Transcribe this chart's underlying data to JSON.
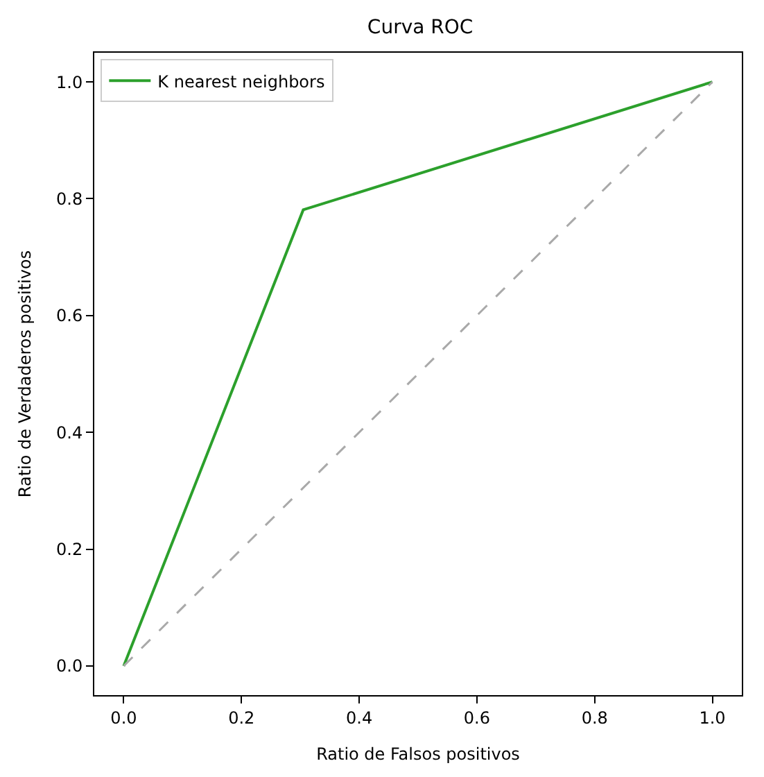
{
  "chart_data": {
    "type": "line",
    "title": "Curva ROC",
    "xlabel": "Ratio de Falsos positivos",
    "ylabel": "Ratio de Verdaderos positivos",
    "series": [
      {
        "name": "K nearest neighbors",
        "color": "#2ca02c",
        "x": [
          0,
          0.305,
          1
        ],
        "values": [
          0,
          0.781,
          1
        ],
        "line_style": "solid"
      },
      {
        "color": "#a9a9a9",
        "x": [
          0,
          1
        ],
        "values": [
          0,
          1
        ],
        "line_style": "dashed"
      }
    ],
    "xlim": [
      -0.05,
      1.05
    ],
    "ylim": [
      -0.05,
      1.05
    ],
    "xticks": [
      {
        "value": 0,
        "label": "0.0"
      },
      {
        "value": 0.2,
        "label": "0.2"
      },
      {
        "value": 0.4,
        "label": "0.4"
      },
      {
        "value": 0.6,
        "label": "0.6"
      },
      {
        "value": 0.8,
        "label": "0.8"
      },
      {
        "value": 1,
        "label": "1.0"
      }
    ],
    "yticks": [
      {
        "value": 0,
        "label": "0.0"
      },
      {
        "value": 0.2,
        "label": "0.2"
      },
      {
        "value": 0.4,
        "label": "0.4"
      },
      {
        "value": 0.6,
        "label": "0.6"
      },
      {
        "value": 0.8,
        "label": "0.8"
      },
      {
        "value": 1,
        "label": "1.0"
      }
    ],
    "legend": "top left"
  }
}
